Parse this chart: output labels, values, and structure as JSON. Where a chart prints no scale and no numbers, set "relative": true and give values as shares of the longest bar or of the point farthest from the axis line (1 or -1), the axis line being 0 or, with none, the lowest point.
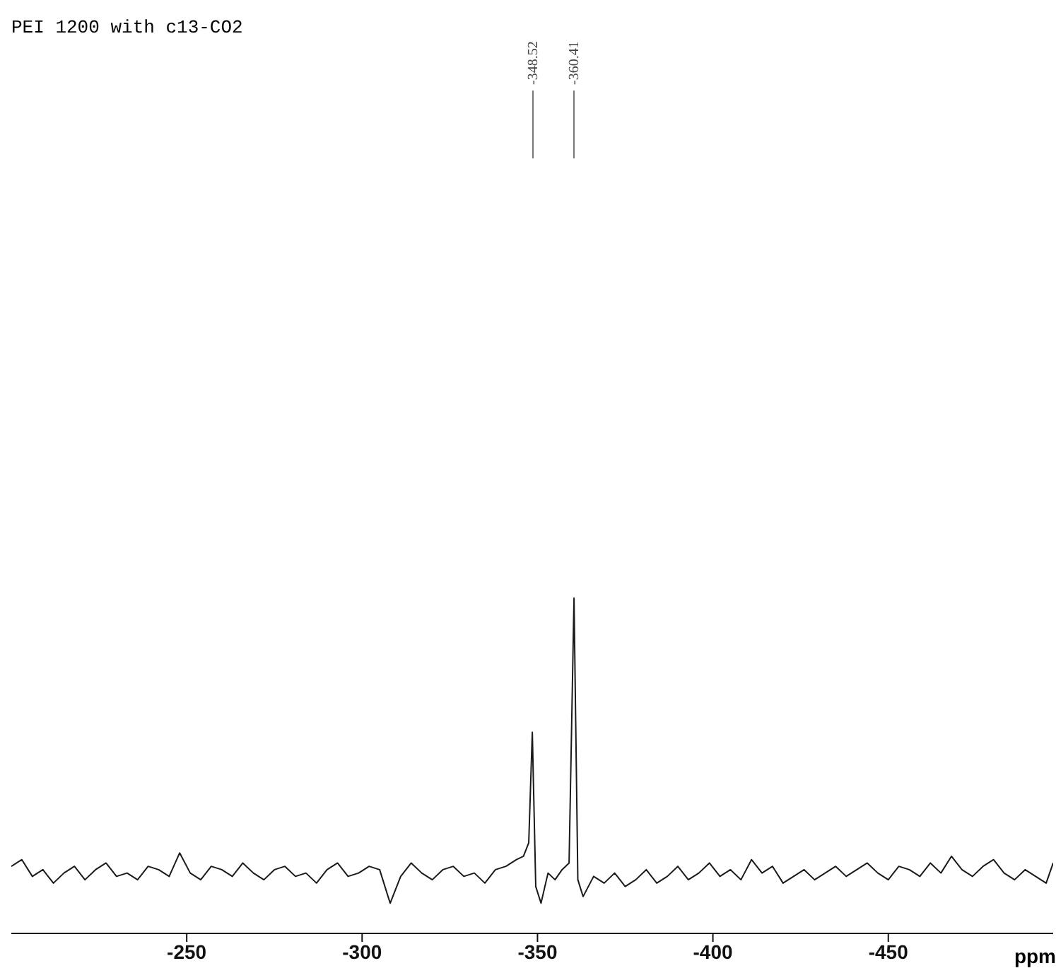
{
  "chart_data": {
    "type": "line",
    "title": "PEI 1200 with c13-CO2",
    "xlabel": "ppm",
    "relative": true,
    "xlim": [
      -200,
      -497
    ],
    "xticks": [
      -250,
      -300,
      -350,
      -400,
      -450
    ],
    "annotations": [
      {
        "text": "-348.52",
        "x": -348.52
      },
      {
        "text": "-360.41",
        "x": -360.41
      }
    ],
    "x": [
      -200,
      -203,
      -206,
      -209,
      -212,
      -215,
      -218,
      -221,
      -224,
      -227,
      -230,
      -233,
      -236,
      -239,
      -242,
      -245,
      -248,
      -251,
      -254,
      -257,
      -260,
      -263,
      -266,
      -269,
      -272,
      -275,
      -278,
      -281,
      -284,
      -287,
      -290,
      -293,
      -296,
      -299,
      -302,
      -305,
      -308,
      -311,
      -314,
      -317,
      -320,
      -323,
      -326,
      -329,
      -332,
      -335,
      -338,
      -341,
      -344,
      -346,
      -347.5,
      -348.52,
      -349.5,
      -351,
      -353,
      -355,
      -357,
      -359,
      -360.41,
      -361.5,
      -363,
      -366,
      -369,
      -372,
      -375,
      -378,
      -381,
      -384,
      -387,
      -390,
      -393,
      -396,
      -399,
      -402,
      -405,
      -408,
      -411,
      -414,
      -417,
      -420,
      -423,
      -426,
      -429,
      -432,
      -435,
      -438,
      -441,
      -444,
      -447,
      -450,
      -453,
      -456,
      -459,
      -462,
      -465,
      -468,
      -471,
      -474,
      -477,
      -480,
      -483,
      -486,
      -489,
      -492,
      -495,
      -497
    ],
    "series": [
      {
        "color": "#1a1a1a",
        "values": [
          0.2,
          0.22,
          0.17,
          0.19,
          0.15,
          0.18,
          0.2,
          0.16,
          0.19,
          0.21,
          0.17,
          0.18,
          0.16,
          0.2,
          0.19,
          0.17,
          0.24,
          0.18,
          0.16,
          0.2,
          0.19,
          0.17,
          0.21,
          0.18,
          0.16,
          0.19,
          0.2,
          0.17,
          0.18,
          0.15,
          0.19,
          0.21,
          0.17,
          0.18,
          0.2,
          0.19,
          0.09,
          0.17,
          0.21,
          0.18,
          0.16,
          0.19,
          0.2,
          0.17,
          0.18,
          0.15,
          0.19,
          0.2,
          0.22,
          0.23,
          0.27,
          0.6,
          0.14,
          0.09,
          0.18,
          0.16,
          0.19,
          0.21,
          1.0,
          0.16,
          0.11,
          0.17,
          0.15,
          0.18,
          0.14,
          0.16,
          0.19,
          0.15,
          0.17,
          0.2,
          0.16,
          0.18,
          0.21,
          0.17,
          0.19,
          0.16,
          0.22,
          0.18,
          0.2,
          0.15,
          0.17,
          0.19,
          0.16,
          0.18,
          0.2,
          0.17,
          0.19,
          0.21,
          0.18,
          0.16,
          0.2,
          0.19,
          0.17,
          0.21,
          0.18,
          0.23,
          0.19,
          0.17,
          0.2,
          0.22,
          0.18,
          0.16,
          0.19,
          0.17,
          0.15,
          0.21
        ]
      }
    ]
  }
}
